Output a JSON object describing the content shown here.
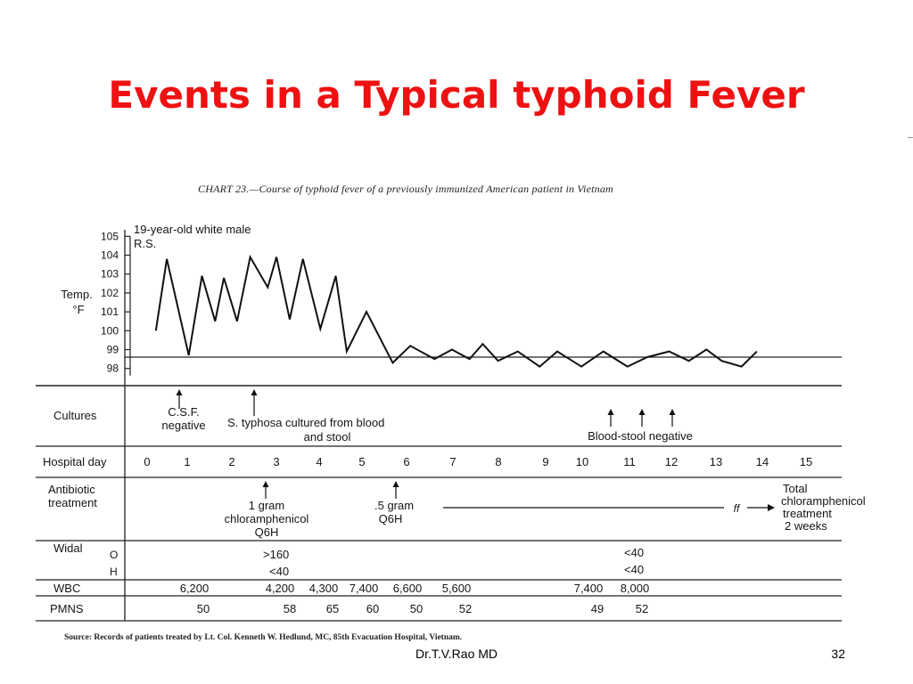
{
  "slide": {
    "title": "Events in a Typical typhoid Fever",
    "footer": "Dr.T.V.Rao MD",
    "page_number": "32"
  },
  "figure": {
    "caption": "CHART 23.—Course of typhoid fever of a previously immunized American patient in Vietnam",
    "source": "Source: Records of patients treated by Lt. Col. Kenneth W. Hedlund, MC, 85th Evacuation Hospital, Vietnam.",
    "patient_note": [
      "19-year-old white male",
      "R.S."
    ]
  },
  "chart_data": {
    "type": "line",
    "ylabel": [
      "Temp.",
      "°F"
    ],
    "ylim": [
      97.6,
      105
    ],
    "y_ticks": [
      98,
      99,
      100,
      101,
      102,
      103,
      104,
      105
    ],
    "xlim": [
      0,
      15
    ],
    "reference_line": 98.6,
    "series": [
      {
        "x": [
          0.2,
          0.45,
          0.95,
          1.25,
          1.55,
          1.75,
          2.05,
          2.35,
          2.75,
          2.95,
          3.25,
          3.55,
          3.95,
          4.3,
          4.55,
          5.0,
          5.6,
          6.0,
          6.55,
          6.95,
          7.35,
          7.65,
          8.0,
          8.45,
          8.95,
          9.35,
          9.9,
          10.4,
          10.95,
          11.4,
          11.9,
          12.35,
          12.75,
          13.1,
          13.55,
          13.9
        ],
        "y": [
          100.0,
          103.8,
          98.7,
          102.9,
          100.5,
          102.8,
          100.5,
          103.9,
          102.3,
          103.9,
          100.6,
          103.8,
          100.1,
          102.9,
          98.9,
          101.0,
          98.3,
          99.2,
          98.5,
          99.0,
          98.5,
          99.3,
          98.4,
          98.9,
          98.1,
          98.9,
          98.1,
          98.9,
          98.1,
          98.6,
          98.9,
          98.4,
          99.0,
          98.4,
          98.1,
          98.9
        ]
      }
    ]
  },
  "table": {
    "cultures_label": "Cultures",
    "cultures": [
      {
        "lines": [
          "C.S.F.",
          "negative"
        ]
      },
      {
        "lines": [
          "S. typhosa cultured from blood",
          "and stool"
        ]
      },
      {
        "lines": [
          "Blood-stool  negative"
        ]
      }
    ],
    "hospital_day_label": "Hospital day",
    "hospital_days": [
      "0",
      "1",
      "2",
      "3",
      "4",
      "5",
      "6",
      "7",
      "8",
      "9",
      "10",
      "11",
      "12",
      "13",
      "14",
      "15"
    ],
    "antibiotic_label": [
      "Antibiotic",
      "treatment"
    ],
    "antibiotic_events": [
      {
        "lines": [
          "1  gram",
          "chloramphenicol",
          "Q6H"
        ]
      },
      {
        "lines": [
          ".5  gram",
          "Q6H"
        ]
      }
    ],
    "antibiotic_end": [
      "Total",
      "chloramphenicol",
      "treatment",
      "2  weeks"
    ],
    "antibiotic_break": "ff",
    "widal_label": "Widal",
    "widal_o_label": "O",
    "widal_h_label": "H",
    "widal_o": [
      ">160",
      "<40"
    ],
    "widal_h": [
      "<40",
      "<40"
    ],
    "wbc_label": "WBC",
    "wbc": [
      "6,200",
      "4,200",
      "4,300",
      "7,400",
      "6,600",
      "5,600",
      "7,400",
      "8,000"
    ],
    "pmns_label": "PMNS",
    "pmns": [
      "50",
      "58",
      "65",
      "60",
      "50",
      "52",
      "49",
      "52"
    ]
  }
}
